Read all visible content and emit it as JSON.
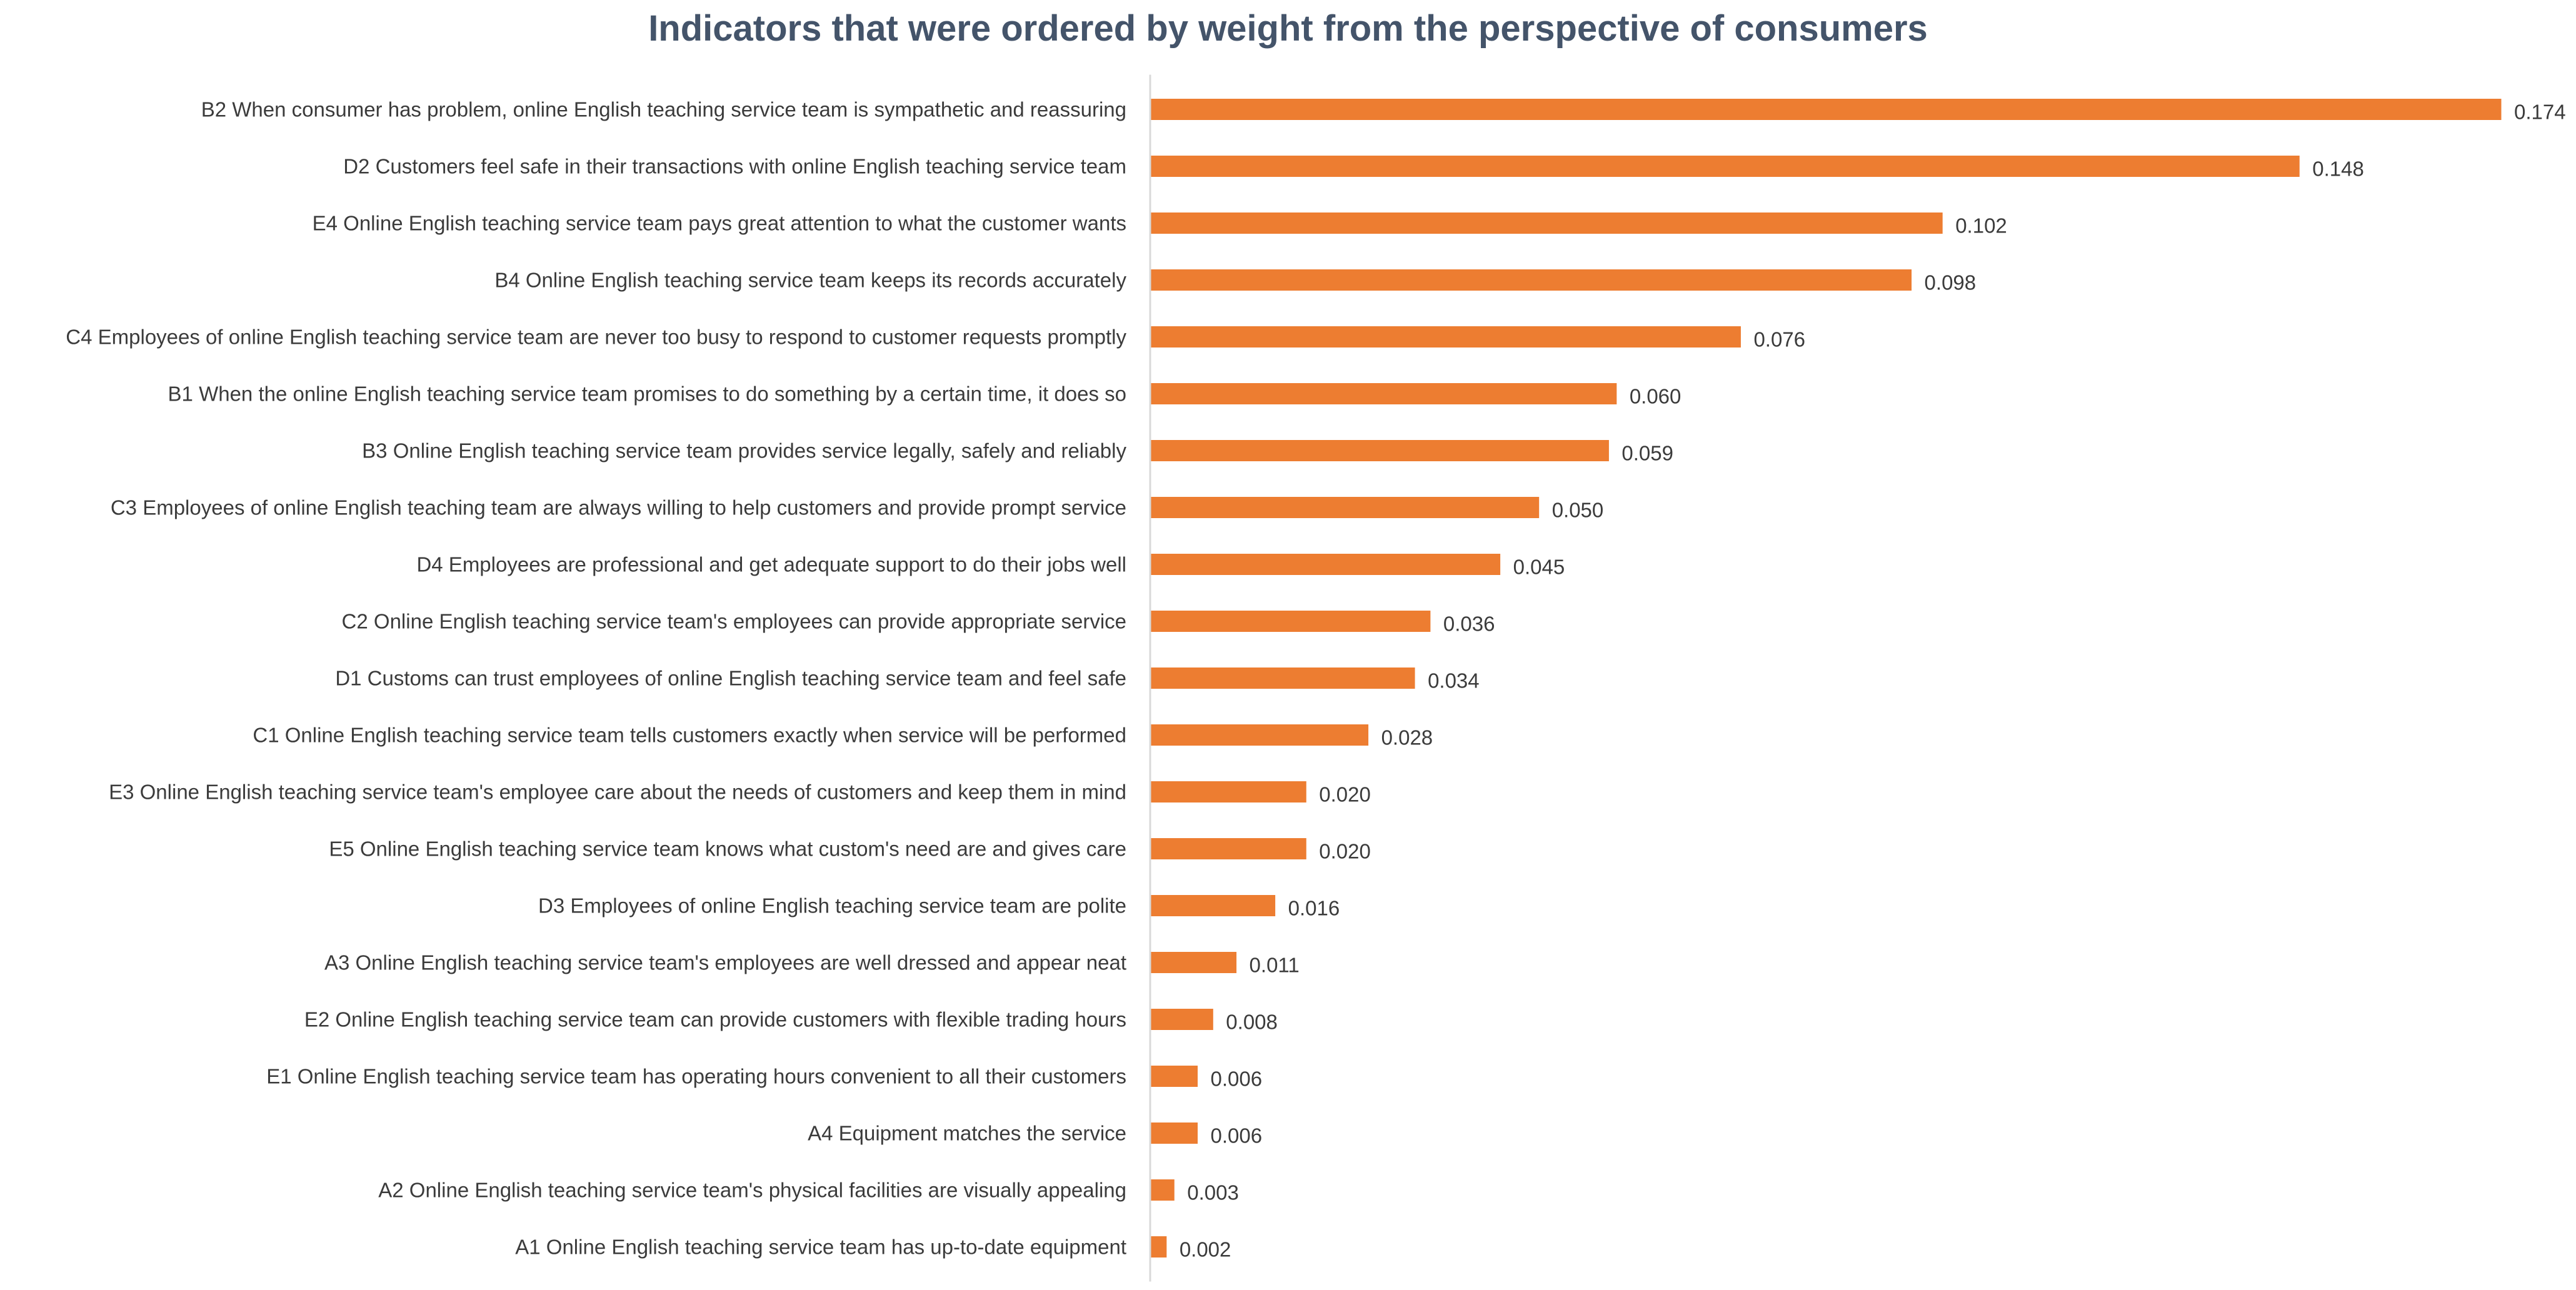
{
  "chart_data": {
    "type": "bar",
    "orientation": "horizontal",
    "title": "Indicators that were ordered by weight from the perspective of consumers",
    "xlabel": "",
    "ylabel": "",
    "xlim": [
      0,
      0.174
    ],
    "grid": false,
    "legend": "none",
    "bar_color": "#ED7D31",
    "axis_color": "#d9d9d9",
    "text_color": "#3b3b3b",
    "title_color": "#44546a",
    "categories": [
      "B2 When consumer has problem, online English teaching service team is sympathetic and reassuring",
      "D2 Customers feel safe in their transactions with online English teaching service team",
      "E4 Online English teaching service team pays great attention to what the customer wants",
      "B4 Online English teaching service team keeps its records accurately",
      "C4 Employees of online English teaching service team are never too busy to respond to customer requests promptly",
      "B1 When the online English teaching service team promises to do something by a certain time, it does so",
      "B3 Online English teaching service team provides service legally, safely and reliably",
      "C3 Employees of online English teaching team are always willing to help customers and provide prompt service",
      "D4 Employees are professional and get adequate support to do their jobs well",
      "C2 Online English teaching service team's employees can provide appropriate service",
      "D1 Customs can trust employees of online English teaching service team and feel safe",
      "C1 Online English teaching service team tells customers exactly when service will be performed",
      "E3 Online English teaching service team's employee care about the needs of customers and keep them in mind",
      "E5 Online English teaching service team knows what custom's need are and gives care",
      "D3 Employees of online English teaching service team are polite",
      "A3 Online English teaching service team's employees are well dressed and appear neat",
      "E2 Online English teaching service team can provide customers with flexible trading hours",
      "E1 Online English teaching service team has operating hours convenient to all their customers",
      "A4 Equipment matches the service",
      "A2 Online English teaching service team's physical facilities are visually appealing",
      "A1 Online English teaching service team has up-to-date equipment"
    ],
    "values": [
      0.174,
      0.148,
      0.102,
      0.098,
      0.076,
      0.06,
      0.059,
      0.05,
      0.045,
      0.036,
      0.034,
      0.028,
      0.02,
      0.02,
      0.016,
      0.011,
      0.008,
      0.006,
      0.006,
      0.003,
      0.002
    ],
    "value_labels": [
      "0.174",
      "0.148",
      "0.102",
      "0.098",
      "0.076",
      "0.060",
      "0.059",
      "0.050",
      "0.045",
      "0.036",
      "0.034",
      "0.028",
      "0.020",
      "0.020",
      "0.016",
      "0.011",
      "0.008",
      "0.006",
      "0.006",
      "0.003",
      "0.002"
    ]
  }
}
